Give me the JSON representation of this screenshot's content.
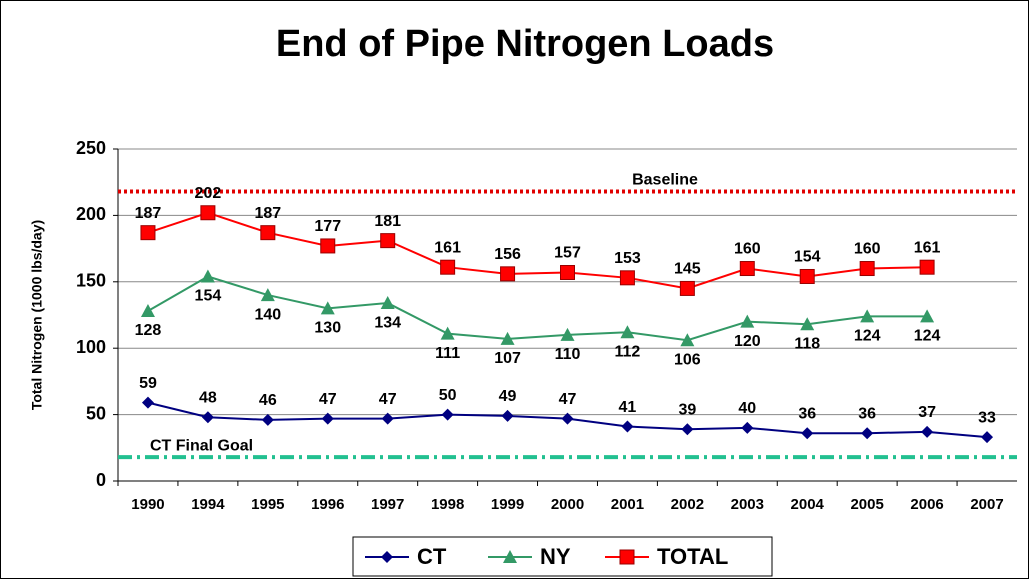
{
  "chart_data": {
    "type": "line",
    "title": "End of Pipe Nitrogen Loads",
    "y_label": "Total Nitrogen (1000 lbs/day)",
    "categories": [
      "1990",
      "1994",
      "1995",
      "1996",
      "1997",
      "1998",
      "1999",
      "2000",
      "2001",
      "2002",
      "2003",
      "2004",
      "2005",
      "2006",
      "2007"
    ],
    "series": [
      {
        "name": "CT",
        "color": "#000080",
        "marker": "diamond",
        "label_side": "above",
        "values": [
          59,
          48,
          46,
          47,
          47,
          50,
          49,
          47,
          41,
          39,
          40,
          36,
          36,
          37,
          33
        ]
      },
      {
        "name": "NY",
        "color": "#339966",
        "marker": "triangle",
        "label_side": "below",
        "values": [
          128,
          154,
          140,
          130,
          134,
          111,
          107,
          110,
          112,
          106,
          120,
          118,
          124,
          124,
          null
        ]
      },
      {
        "name": "TOTAL",
        "color": "#ff0000",
        "marker": "square",
        "label_side": "above",
        "values": [
          187,
          202,
          187,
          177,
          181,
          161,
          156,
          157,
          153,
          145,
          160,
          154,
          160,
          161,
          null
        ]
      }
    ],
    "reference_lines": [
      {
        "label": "Baseline",
        "value": 218,
        "color": "#e00000",
        "style": "dotted"
      },
      {
        "label": "CT Final Goal",
        "value": 18,
        "color": "#22c090",
        "style": "dashdot"
      }
    ],
    "ylim": [
      0,
      250
    ],
    "yticks": [
      0,
      50,
      100,
      150,
      200,
      250
    ],
    "grid": true,
    "legend": "bottom"
  }
}
